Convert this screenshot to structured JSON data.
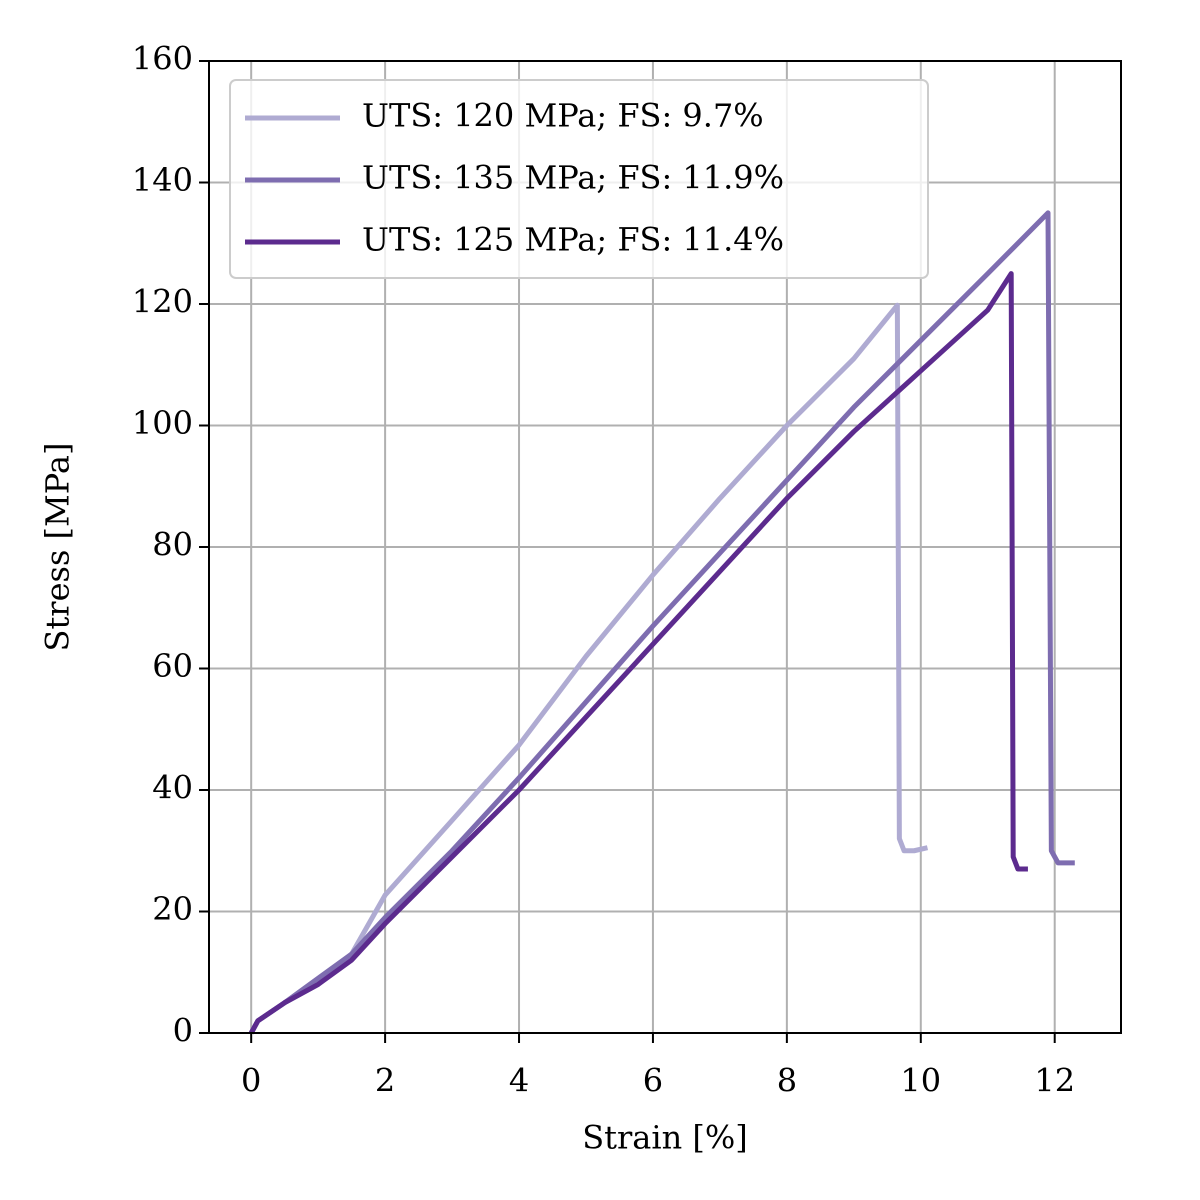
{
  "chart_data": {
    "type": "line",
    "x_label": "Strain [%]",
    "y_label": "Stress [MPa]",
    "xlim": [
      -0.63,
      12.99
    ],
    "ylim": [
      0,
      160
    ],
    "xticks": [
      0,
      2,
      4,
      6,
      8,
      10,
      12
    ],
    "yticks": [
      0,
      20,
      40,
      60,
      80,
      100,
      120,
      140,
      160
    ],
    "grid": true,
    "legend": "upper left",
    "series": [
      {
        "name": "UTS: 120 MPa; FS: 9.7%",
        "color": "#afabd2",
        "x": [
          0,
          0.1,
          0.5,
          1,
          1.5,
          2,
          3,
          4,
          5,
          6,
          7,
          8,
          9,
          9.65,
          9.68,
          9.75,
          9.9,
          10.1
        ],
        "values": [
          0,
          2,
          5,
          8,
          13,
          22.7,
          35,
          47.4,
          62,
          75.4,
          88,
          100,
          111,
          119.8,
          32,
          30,
          30,
          30.5
        ]
      },
      {
        "name": "UTS: 135 MPa; FS: 11.9%",
        "color": "#7e6db0",
        "x": [
          0,
          0.1,
          0.5,
          1,
          1.5,
          2,
          3,
          4,
          5,
          6,
          7,
          8,
          9,
          10,
          11,
          11.9,
          11.95,
          12.05,
          12.3
        ],
        "values": [
          0,
          2,
          5,
          9,
          13,
          19,
          30,
          42,
          54.5,
          67,
          79,
          91,
          103,
          114,
          125,
          135,
          30,
          28,
          28
        ]
      },
      {
        "name": "UTS: 125 MPa; FS: 11.4%",
        "color": "#5c2b8e",
        "x": [
          0,
          0.1,
          0.5,
          1,
          1.5,
          2,
          3,
          4,
          5,
          6,
          7,
          8,
          9,
          10,
          11,
          11.35,
          11.38,
          11.45,
          11.6
        ],
        "values": [
          0,
          2,
          5,
          8,
          12,
          18,
          29,
          40,
          52,
          64,
          76,
          88,
          99,
          109,
          119,
          125,
          29,
          27,
          27
        ]
      }
    ]
  }
}
